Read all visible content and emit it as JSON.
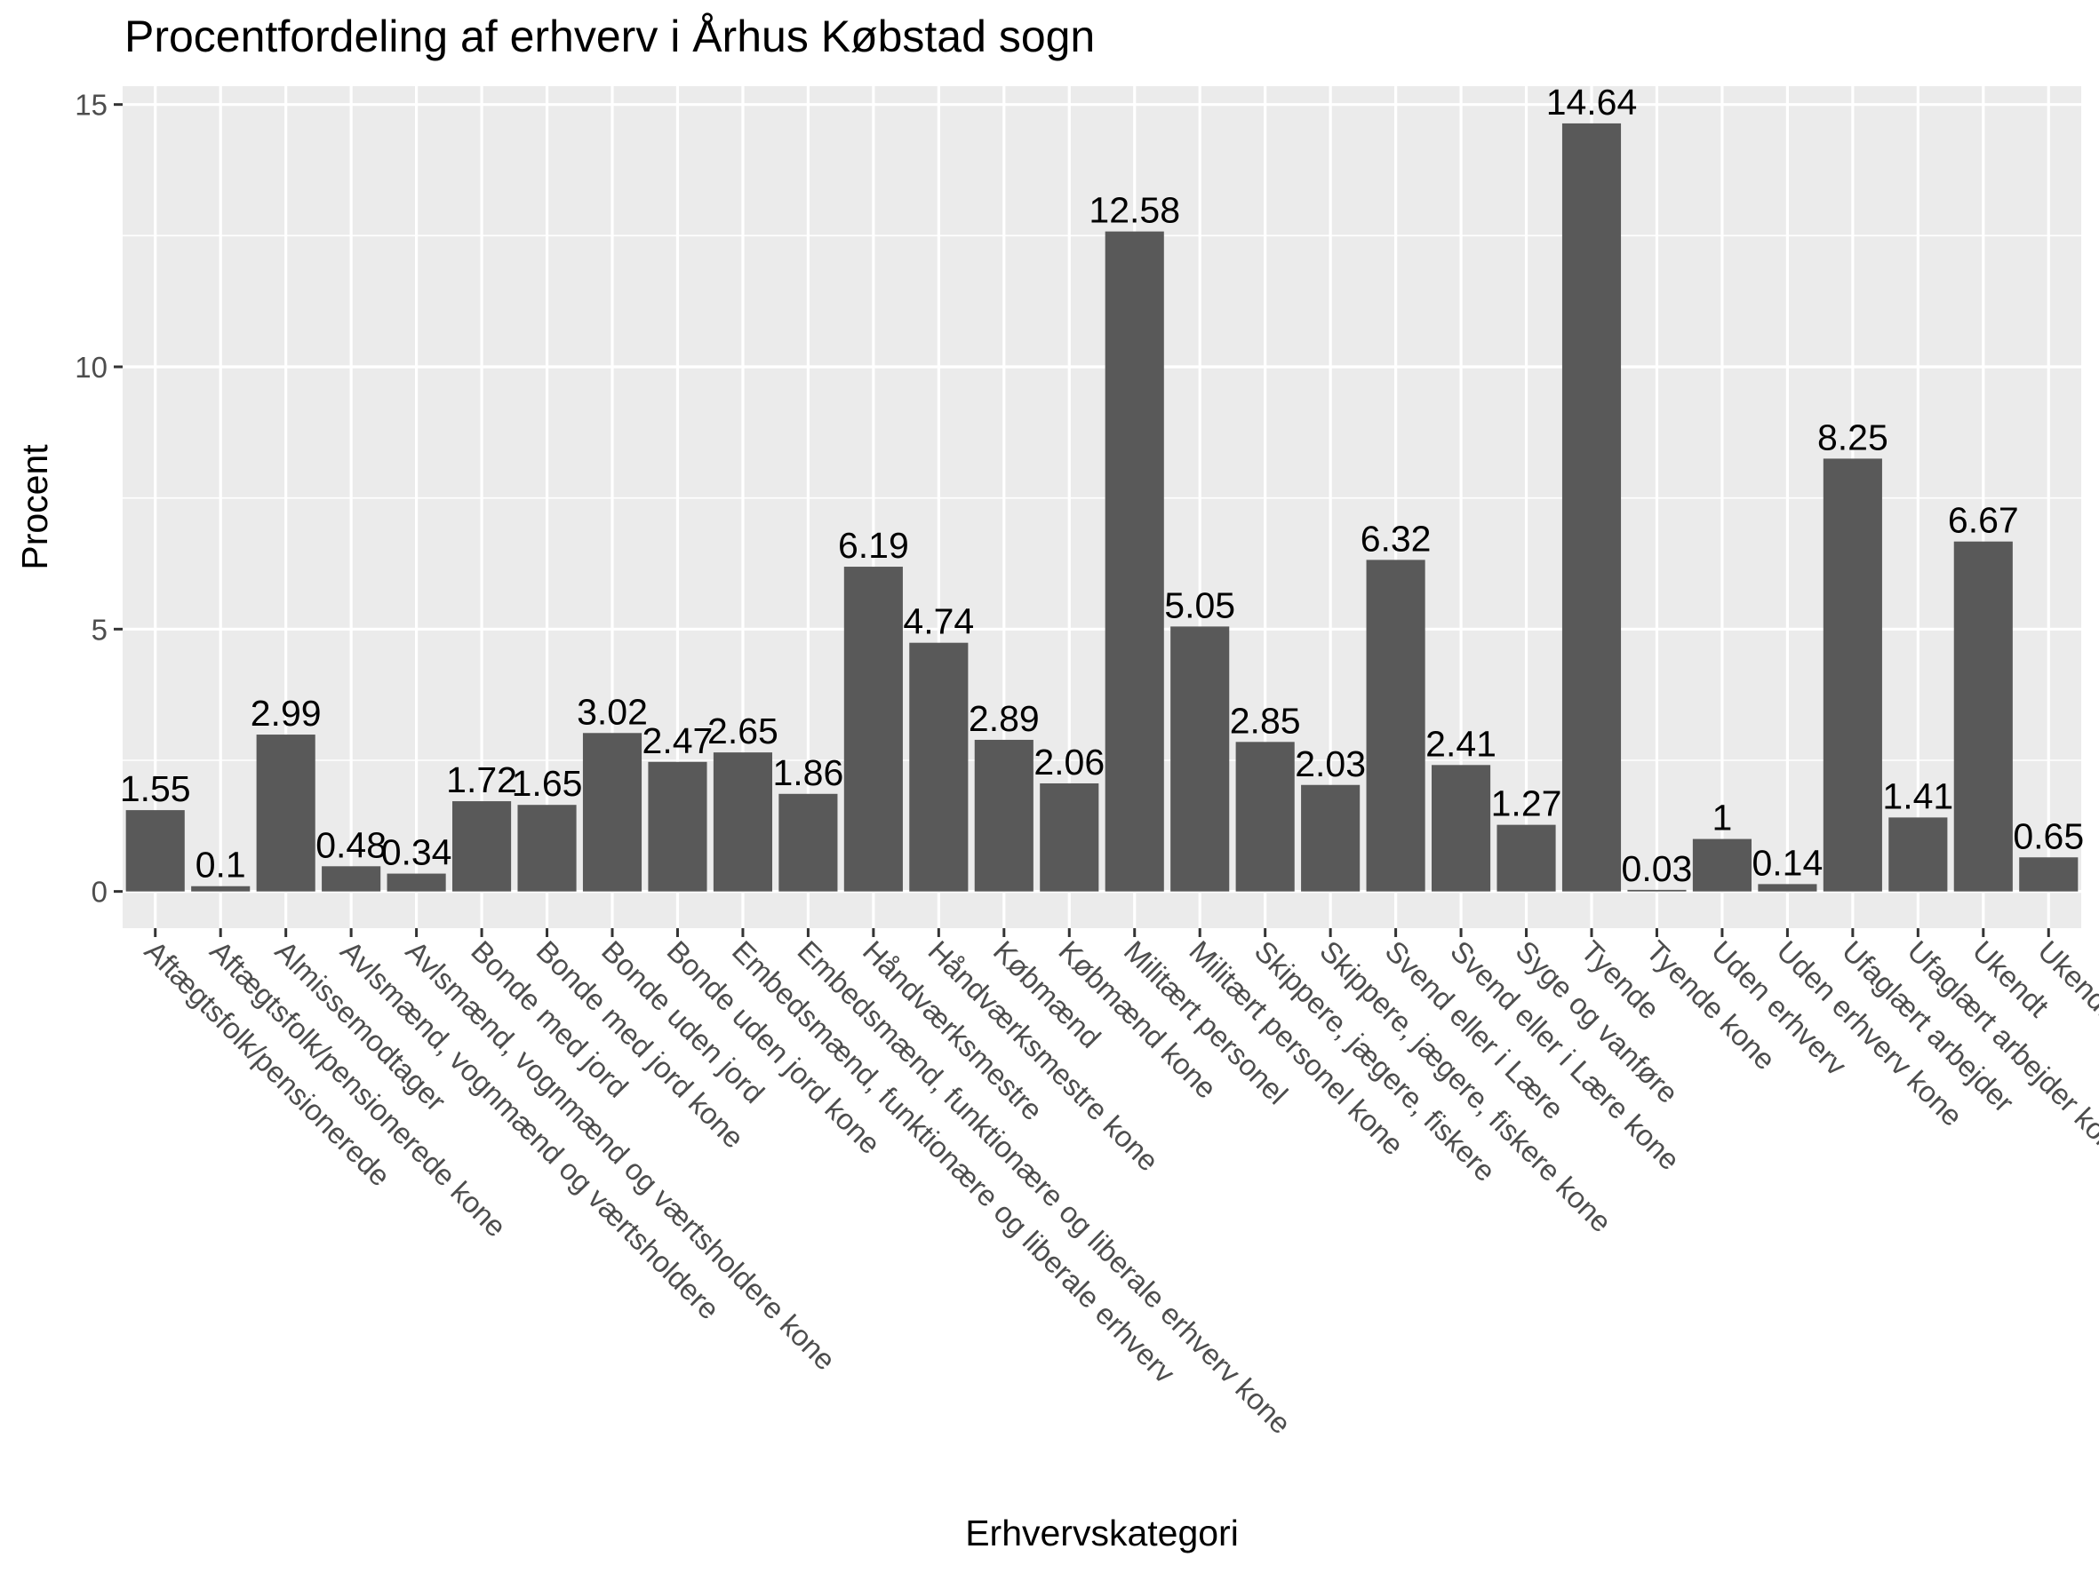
{
  "chart_data": {
    "type": "bar",
    "title": "Procentfordeling af erhverv i Århus Købstad sogn",
    "xlabel": "Erhvervskategori",
    "ylabel": "Procent",
    "ylim": [
      -0.7,
      15.35
    ],
    "yticks": [
      0,
      5,
      10,
      15
    ],
    "grid": true,
    "legend": "none",
    "colors": {
      "bar": "#595959",
      "panel": "#ebebeb",
      "grid": "#ffffff",
      "tick_text": "#4d4d4d"
    },
    "categories": [
      "Aftægtsfolk/pensionerede",
      "Aftægtsfolk/pensionerede kone",
      "Almissemodtager",
      "Avlsmænd, vognmænd og værtsholdere",
      "Avlsmænd, vognmænd og værtsholdere kone",
      "Bonde med jord",
      "Bonde med jord kone",
      "Bonde uden jord",
      "Bonde uden jord kone",
      "Embedsmænd, funktionære og liberale erhverv",
      "Embedsmænd, funktionære og liberale erhverv kone",
      "Håndværksmestre",
      "Håndværksmestre kone",
      "Købmænd",
      "Købmænd kone",
      "Militært personel",
      "Militært personel kone",
      "Skippere, jægere, fiskere",
      "Skippere, jægere, fiskere kone",
      "Svend eller i Lære",
      "Svend eller i Lære kone",
      "Syge og vanføre",
      "Tyende",
      "Tyende kone",
      "Uden erhverv",
      "Uden erhverv kone",
      "Ufaglært arbejder",
      "Ufaglært arbejder kone",
      "Ukendt",
      "Ukendt kone"
    ],
    "values": [
      1.55,
      0.1,
      2.99,
      0.48,
      0.34,
      1.72,
      1.65,
      3.02,
      2.47,
      2.65,
      1.86,
      6.19,
      4.74,
      2.89,
      2.06,
      12.58,
      5.05,
      2.85,
      2.03,
      6.32,
      2.41,
      1.27,
      14.64,
      0.03,
      1,
      0.14,
      8.25,
      1.41,
      6.67,
      0.65
    ],
    "labels": [
      "1.55",
      "0.1",
      "2.99",
      "0.48",
      "0.34",
      "1.72",
      "1.65",
      "3.02",
      "2.47",
      "2.65",
      "1.86",
      "6.19",
      "4.74",
      "2.89",
      "2.06",
      "12.58",
      "5.05",
      "2.85",
      "2.03",
      "6.32",
      "2.41",
      "1.27",
      "14.64",
      "0.03",
      "1",
      "0.14",
      "8.25",
      "1.41",
      "6.67",
      "0.65"
    ]
  }
}
